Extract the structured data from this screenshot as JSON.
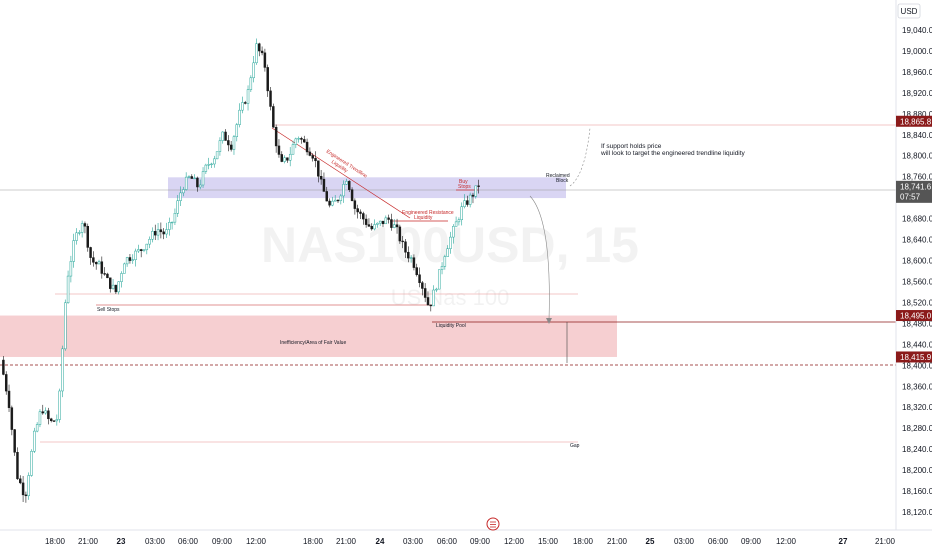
{
  "chart_data": {
    "type": "candlestick",
    "symbol_watermark": "NAS100USD, 15",
    "description_watermark": "US Nas 100",
    "currency": "USD",
    "y_range": [
      18100,
      19120
    ],
    "y_ticks": [
      {
        "value": 19040,
        "label": "19,040.0"
      },
      {
        "value": 19000,
        "label": "19,000.0"
      },
      {
        "value": 18960,
        "label": "18,960.0"
      },
      {
        "value": 18920,
        "label": "18,920.0"
      },
      {
        "value": 18880,
        "label": "18,880.0"
      },
      {
        "value": 18840,
        "label": "18,840.0"
      },
      {
        "value": 18800,
        "label": "18,800.0"
      },
      {
        "value": 18760,
        "label": "18,760.0"
      },
      {
        "value": 18680,
        "label": "18,680.0"
      },
      {
        "value": 18640,
        "label": "18,640.0"
      },
      {
        "value": 18600,
        "label": "18,600.0"
      },
      {
        "value": 18560,
        "label": "18,560.0"
      },
      {
        "value": 18520,
        "label": "18,520.0"
      },
      {
        "value": 18480,
        "label": "18,480.0"
      },
      {
        "value": 18440,
        "label": "18,440.0"
      },
      {
        "value": 18400,
        "label": "18,400.0"
      },
      {
        "value": 18360,
        "label": "18,360.0"
      },
      {
        "value": 18320,
        "label": "18,320.0"
      },
      {
        "value": 18280,
        "label": "18,280.0"
      },
      {
        "value": 18240,
        "label": "18,240.0"
      },
      {
        "value": 18200,
        "label": "18,200.0"
      },
      {
        "value": 18160,
        "label": "18,160.0"
      },
      {
        "value": 18120,
        "label": "18,120.0"
      }
    ],
    "price_tags": [
      {
        "value": 18865.8,
        "label": "18,865.8",
        "color": "#8b1a1a"
      },
      {
        "value": 18741.6,
        "label": "18,741.6",
        "sub": "07:57",
        "color": "#555555"
      },
      {
        "value": 18495.0,
        "label": "18,495.0",
        "color": "#8b1a1a"
      },
      {
        "value": 18415.9,
        "label": "18,415.9",
        "color": "#8b1a1a"
      }
    ],
    "x_ticks": [
      {
        "label": "18:00",
        "bold": false
      },
      {
        "label": "21:00",
        "bold": false
      },
      {
        "label": "23",
        "bold": true
      },
      {
        "label": "03:00",
        "bold": false
      },
      {
        "label": "06:00",
        "bold": false
      },
      {
        "label": "09:00",
        "bold": false
      },
      {
        "label": "12:00",
        "bold": false
      },
      {
        "label": "18:00",
        "bold": false
      },
      {
        "label": "21:00",
        "bold": false
      },
      {
        "label": "24",
        "bold": true
      },
      {
        "label": "03:00",
        "bold": false
      },
      {
        "label": "06:00",
        "bold": false
      },
      {
        "label": "09:00",
        "bold": false
      },
      {
        "label": "12:00",
        "bold": false
      },
      {
        "label": "15:00",
        "bold": false
      },
      {
        "label": "18:00",
        "bold": false
      },
      {
        "label": "21:00",
        "bold": false
      },
      {
        "label": "25",
        "bold": true
      },
      {
        "label": "03:00",
        "bold": false
      },
      {
        "label": "06:00",
        "bold": false
      },
      {
        "label": "09:00",
        "bold": false
      },
      {
        "label": "12:00",
        "bold": false
      },
      {
        "label": "27",
        "bold": true
      },
      {
        "label": "21:00",
        "bold": false
      }
    ],
    "price_path": [
      18410,
      18330,
      18190,
      18150,
      18260,
      18320,
      18290,
      18300,
      18560,
      18640,
      18680,
      18600,
      18590,
      18560,
      18540,
      18600,
      18610,
      18620,
      18640,
      18660,
      18650,
      18680,
      18740,
      18760,
      18740,
      18780,
      18800,
      18840,
      18820,
      18880,
      18920,
      19010,
      18980,
      18860,
      18780,
      18800,
      18840,
      18820,
      18800,
      18740,
      18700,
      18720,
      18760,
      18700,
      18680,
      18660,
      18670,
      18680,
      18660,
      18620,
      18600,
      18560,
      18510,
      18560,
      18620,
      18660,
      18700,
      18720,
      18742
    ],
    "zones": [
      {
        "label": "Inefficiency/Area of Fair Value",
        "top": 18495,
        "bottom": 18415.9,
        "color": "#f4c7c9"
      },
      {
        "label": "Reclaimed Block",
        "top": 18755,
        "bottom": 18723,
        "color": "#cfcbf0"
      }
    ],
    "levels": [
      {
        "label": "Sell Stops",
        "value": 18532
      },
      {
        "label": "Liquidity Pool",
        "value": 18495
      },
      {
        "label": "Gap",
        "value": 18275
      },
      {
        "label": "Buy Stops",
        "value": 18740
      }
    ],
    "annotations": {
      "trendline": "Engineered Trendline\nLiquidity",
      "resistance": "Engineered Resistance\nLiquidity",
      "reclaimed": "Reclaimed\nBlock",
      "buy_stops": "Buy\nStops",
      "sell_stops": "Sell Stops",
      "liquidity_pool": "Liquidity Pool",
      "fair_value": "Inefficiency/Area of Fair Value",
      "gap": "Gap",
      "note": "If support holds price\nwill look to target the engineered trendline liquidity"
    },
    "colors": {
      "up": "#26a69a",
      "down": "#1a1a1a",
      "red_line": "#c62828",
      "zone_red": "#f4c7c9",
      "zone_purple": "#cfcbf0"
    }
  }
}
